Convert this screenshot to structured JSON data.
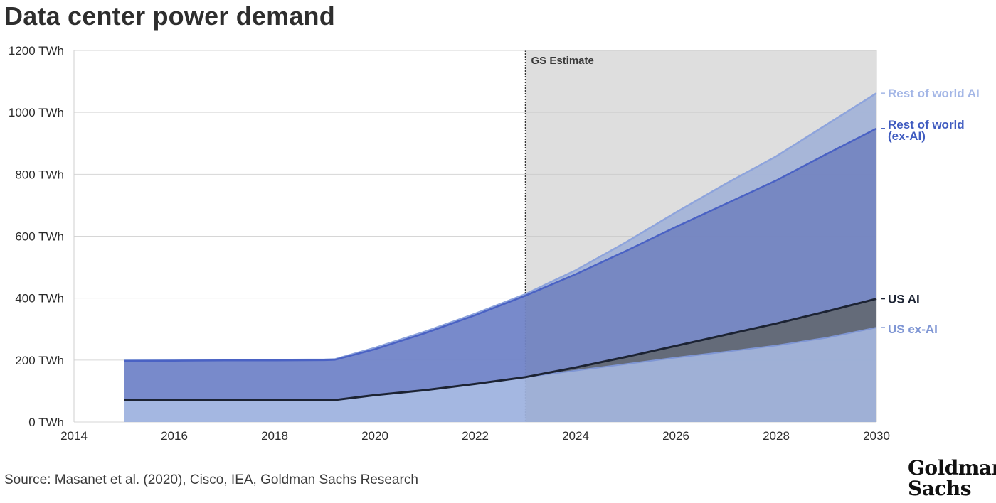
{
  "title": "Data center power demand",
  "source": "Source: Masanet et al. (2020), Cisco, IEA, Goldman Sachs Research",
  "logo_lines": [
    "Goldman",
    "Sachs"
  ],
  "chart_data": {
    "type": "area",
    "title": "Data center power demand",
    "xlabel": "",
    "ylabel": "",
    "xlim": [
      2014,
      2030
    ],
    "ylim": [
      0,
      1200
    ],
    "x_ticks": [
      "2014",
      "2016",
      "2018",
      "2020",
      "2022",
      "2024",
      "2026",
      "2028",
      "2030"
    ],
    "y_ticks": [
      "0 TWh",
      "200 TWh",
      "400 TWh",
      "600 TWh",
      "800 TWh",
      "1000 TWh",
      "1200 TWh"
    ],
    "grid": "horizontal",
    "stacked": true,
    "x": [
      2015,
      2016,
      2017,
      2018,
      2019,
      2019.2,
      2020,
      2021,
      2022,
      2023,
      2024,
      2025,
      2026,
      2027,
      2028,
      2029,
      2030
    ],
    "series": [
      {
        "name": "US ex-AI",
        "color": "#9fb3df",
        "cumulative": [
          70,
          70,
          71,
          71,
          71,
          71,
          87,
          103,
          123,
          145,
          166,
          187,
          208,
          227,
          247,
          272,
          305
        ]
      },
      {
        "name": "US AI",
        "color": "#5a6273",
        "cumulative": [
          70,
          70,
          71,
          71,
          71,
          71,
          87,
          103,
          123,
          145,
          176,
          210,
          246,
          282,
          318,
          357,
          398
        ]
      },
      {
        "name": "Rest of world (ex-AI)",
        "color": "#7184c8",
        "cumulative": [
          197,
          198,
          199,
          199,
          200,
          201,
          235,
          287,
          345,
          408,
          477,
          552,
          630,
          705,
          780,
          865,
          948
        ]
      },
      {
        "name": "Rest of world AI",
        "color": "#a9bbe3",
        "cumulative": [
          199,
          200,
          201,
          201,
          202,
          203,
          240,
          292,
          350,
          413,
          490,
          580,
          677,
          770,
          858,
          960,
          1062
        ]
      }
    ],
    "annotations": [
      {
        "text": "GS Estimate",
        "x": 2023
      }
    ]
  }
}
